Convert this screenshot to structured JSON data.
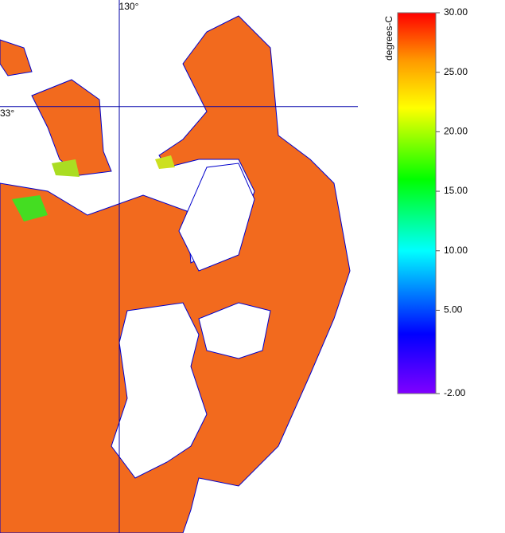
{
  "map": {
    "lonlim": [
      128.5,
      133.0
    ],
    "latlim": [
      30.2,
      33.7
    ],
    "graticule": {
      "lon": [
        {
          "value": 130,
          "label": "130°"
        }
      ],
      "lat": [
        {
          "value": 33,
          "label": "33°"
        }
      ],
      "color": "#0000aa"
    },
    "sea_color": "#f26a1e",
    "coast_color": "#0000cc"
  },
  "colorbar": {
    "label": "degrees-C",
    "lim": [
      -2,
      30
    ],
    "ticks": [
      {
        "value": 30,
        "label": "30.00"
      },
      {
        "value": 25,
        "label": "25.00"
      },
      {
        "value": 20,
        "label": "20.00"
      },
      {
        "value": 15,
        "label": "15.00"
      },
      {
        "value": 10,
        "label": "10.00"
      },
      {
        "value": 5,
        "label": "5.00"
      },
      {
        "value": -2,
        "label": "-2.00"
      }
    ],
    "colormap": [
      {
        "value": -2,
        "color": "#8000ff"
      },
      {
        "value": 3,
        "color": "#0000ff"
      },
      {
        "value": 10,
        "color": "#00ffff"
      },
      {
        "value": 16,
        "color": "#00ff00"
      },
      {
        "value": 22,
        "color": "#ffff00"
      },
      {
        "value": 26,
        "color": "#ff9900"
      },
      {
        "value": 30,
        "color": "#ff0000"
      }
    ]
  }
}
